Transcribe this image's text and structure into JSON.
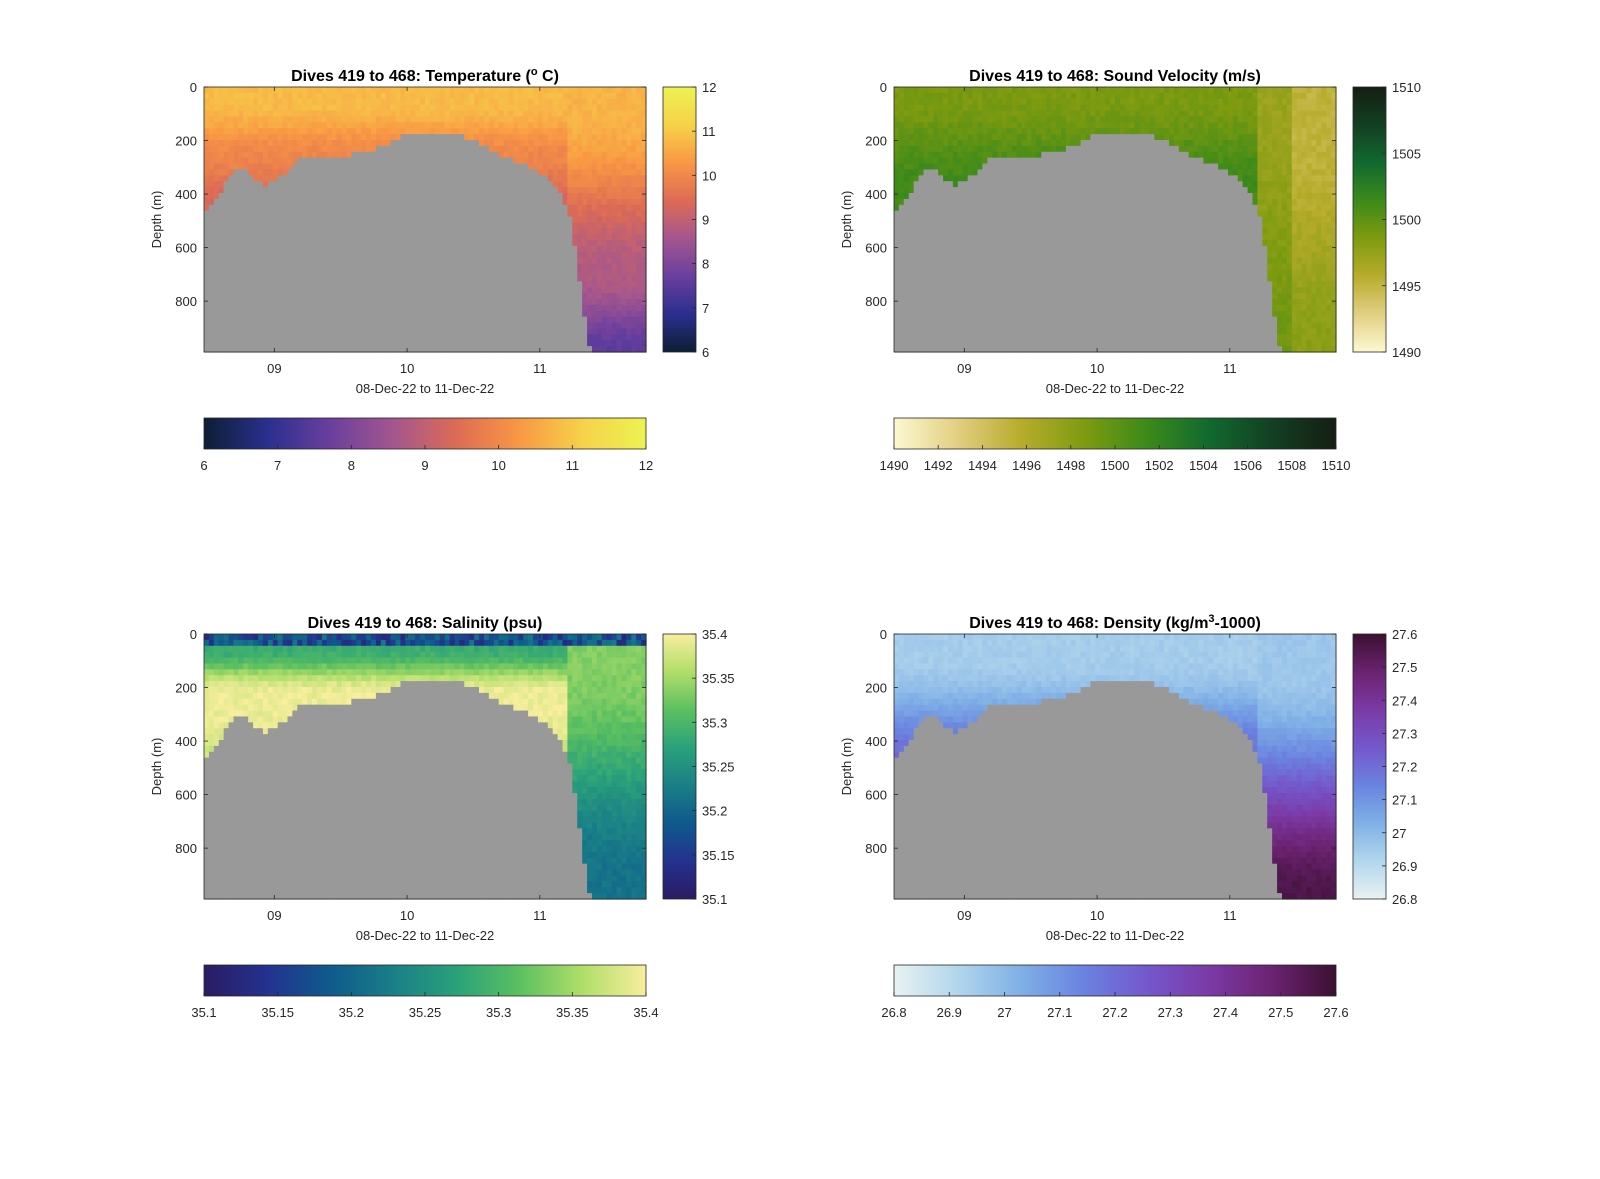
{
  "figure": {
    "x_axis_label": "08-Dec-22 to 11-Dec-22",
    "y_axis_label": "Depth (m)",
    "colors": {
      "seafloor": "#999999",
      "axis": "#262626"
    }
  },
  "chart_data": [
    {
      "type": "heatmap",
      "variable": "temperature",
      "title_prefix": "Dives 419 to 468: Temperature (",
      "title_sup": "o",
      "title_suffix": " C)",
      "xlabel": "08-Dec-22 to 11-Dec-22",
      "ylabel": "Depth (m)",
      "xlim": [
        8.47,
        11.8
      ],
      "ylim": [
        0,
        990
      ],
      "y_reversed": true,
      "x_ticks": [
        9,
        10,
        11
      ],
      "x_tick_labels": [
        "09",
        "10",
        "11"
      ],
      "y_ticks": [
        0,
        200,
        400,
        600,
        800
      ],
      "y_tick_labels": [
        "0",
        "200",
        "400",
        "600",
        "800"
      ],
      "color_range": [
        6,
        12
      ],
      "colormap": [
        "#0b1f33",
        "#2a2f8e",
        "#6a3f9e",
        "#a4568e",
        "#dd6b55",
        "#f99844",
        "#f6d249",
        "#ecf352"
      ],
      "vertical_colorbar_ticks": [
        6,
        7,
        8,
        9,
        10,
        11,
        12
      ],
      "vertical_colorbar_tick_labels": [
        "6",
        "7",
        "8",
        "9",
        "10",
        "11",
        "12"
      ],
      "horizontal_colorbar_ticks": [
        6,
        7,
        8,
        9,
        10,
        11,
        12
      ],
      "horizontal_colorbar_tick_labels": [
        "6",
        "7",
        "8",
        "9",
        "10",
        "11",
        "12"
      ]
    },
    {
      "type": "heatmap",
      "variable": "sound_velocity",
      "title_prefix": "Dives 419 to 468: Sound Velocity (m/s)",
      "title_sup": "",
      "title_suffix": "",
      "xlabel": "08-Dec-22 to 11-Dec-22",
      "ylabel": "Depth (m)",
      "xlim": [
        8.47,
        11.8
      ],
      "ylim": [
        0,
        990
      ],
      "y_reversed": true,
      "x_ticks": [
        9,
        10,
        11
      ],
      "x_tick_labels": [
        "09",
        "10",
        "11"
      ],
      "y_ticks": [
        0,
        200,
        400,
        600,
        800
      ],
      "y_tick_labels": [
        "0",
        "200",
        "400",
        "600",
        "800"
      ],
      "color_range": [
        1490,
        1510
      ],
      "colormap": [
        "#fcf8d0",
        "#e2cf82",
        "#b7ac2c",
        "#7f9b10",
        "#3c8a1a",
        "#11692f",
        "#133f22",
        "#141e12"
      ],
      "vertical_colorbar_ticks": [
        1490,
        1495,
        1500,
        1505,
        1510
      ],
      "vertical_colorbar_tick_labels": [
        "1490",
        "1495",
        "1500",
        "1505",
        "1510"
      ],
      "horizontal_colorbar_ticks": [
        1490,
        1492,
        1494,
        1496,
        1498,
        1500,
        1502,
        1504,
        1506,
        1508,
        1510
      ],
      "horizontal_colorbar_tick_labels": [
        "1490",
        "1492",
        "1494",
        "1496",
        "1498",
        "1500",
        "1502",
        "1504",
        "1506",
        "1508",
        "1510"
      ]
    },
    {
      "type": "heatmap",
      "variable": "salinity",
      "title_prefix": "Dives 419 to 468: Salinity (psu)",
      "title_sup": "",
      "title_suffix": "",
      "xlabel": "08-Dec-22 to 11-Dec-22",
      "ylabel": "Depth (m)",
      "xlim": [
        8.47,
        11.8
      ],
      "ylim": [
        0,
        990
      ],
      "y_reversed": true,
      "x_ticks": [
        9,
        10,
        11
      ],
      "x_tick_labels": [
        "09",
        "10",
        "11"
      ],
      "y_ticks": [
        0,
        200,
        400,
        600,
        800
      ],
      "y_tick_labels": [
        "0",
        "200",
        "400",
        "600",
        "800"
      ],
      "color_range": [
        35.1,
        35.4
      ],
      "colormap": [
        "#2a1b63",
        "#23328f",
        "#0f5a8c",
        "#1a7f87",
        "#2aa17a",
        "#5cc060",
        "#b0de6a",
        "#f8ee9e"
      ],
      "vertical_colorbar_ticks": [
        35.1,
        35.15,
        35.2,
        35.25,
        35.3,
        35.35,
        35.4
      ],
      "vertical_colorbar_tick_labels": [
        "35.1",
        "35.15",
        "35.2",
        "35.25",
        "35.3",
        "35.35",
        "35.4"
      ],
      "horizontal_colorbar_ticks": [
        35.1,
        35.15,
        35.2,
        35.25,
        35.3,
        35.35,
        35.4
      ],
      "horizontal_colorbar_tick_labels": [
        "35.1",
        "35.15",
        "35.2",
        "35.25",
        "35.3",
        "35.35",
        "35.4"
      ]
    },
    {
      "type": "heatmap",
      "variable": "density",
      "title_prefix": "Dives 419 to 468: Density (kg/m",
      "title_sup": "3",
      "title_suffix": "-1000)",
      "xlabel": "08-Dec-22 to 11-Dec-22",
      "ylabel": "Depth (m)",
      "xlim": [
        8.47,
        11.8
      ],
      "ylim": [
        0,
        990
      ],
      "y_reversed": true,
      "x_ticks": [
        9,
        10,
        11
      ],
      "x_tick_labels": [
        "09",
        "10",
        "11"
      ],
      "y_ticks": [
        0,
        200,
        400,
        600,
        800
      ],
      "y_tick_labels": [
        "0",
        "200",
        "400",
        "600",
        "800"
      ],
      "color_range": [
        26.8,
        27.6
      ],
      "colormap": [
        "#e8f2f2",
        "#b2d6ec",
        "#7fb0e6",
        "#6a83e0",
        "#7458cc",
        "#7b3aa6",
        "#6b2270",
        "#3b1032"
      ],
      "vertical_colorbar_ticks": [
        26.8,
        26.9,
        27.0,
        27.1,
        27.2,
        27.3,
        27.4,
        27.5,
        27.6
      ],
      "vertical_colorbar_tick_labels": [
        "26.8",
        "26.9",
        "27",
        "27.1",
        "27.2",
        "27.3",
        "27.4",
        "27.5",
        "27.6"
      ],
      "horizontal_colorbar_ticks": [
        26.8,
        26.9,
        27.0,
        27.1,
        27.2,
        27.3,
        27.4,
        27.5,
        27.6
      ],
      "horizontal_colorbar_tick_labels": [
        "26.8",
        "26.9",
        "27",
        "27.1",
        "27.2",
        "27.3",
        "27.4",
        "27.5",
        "27.6"
      ]
    }
  ]
}
